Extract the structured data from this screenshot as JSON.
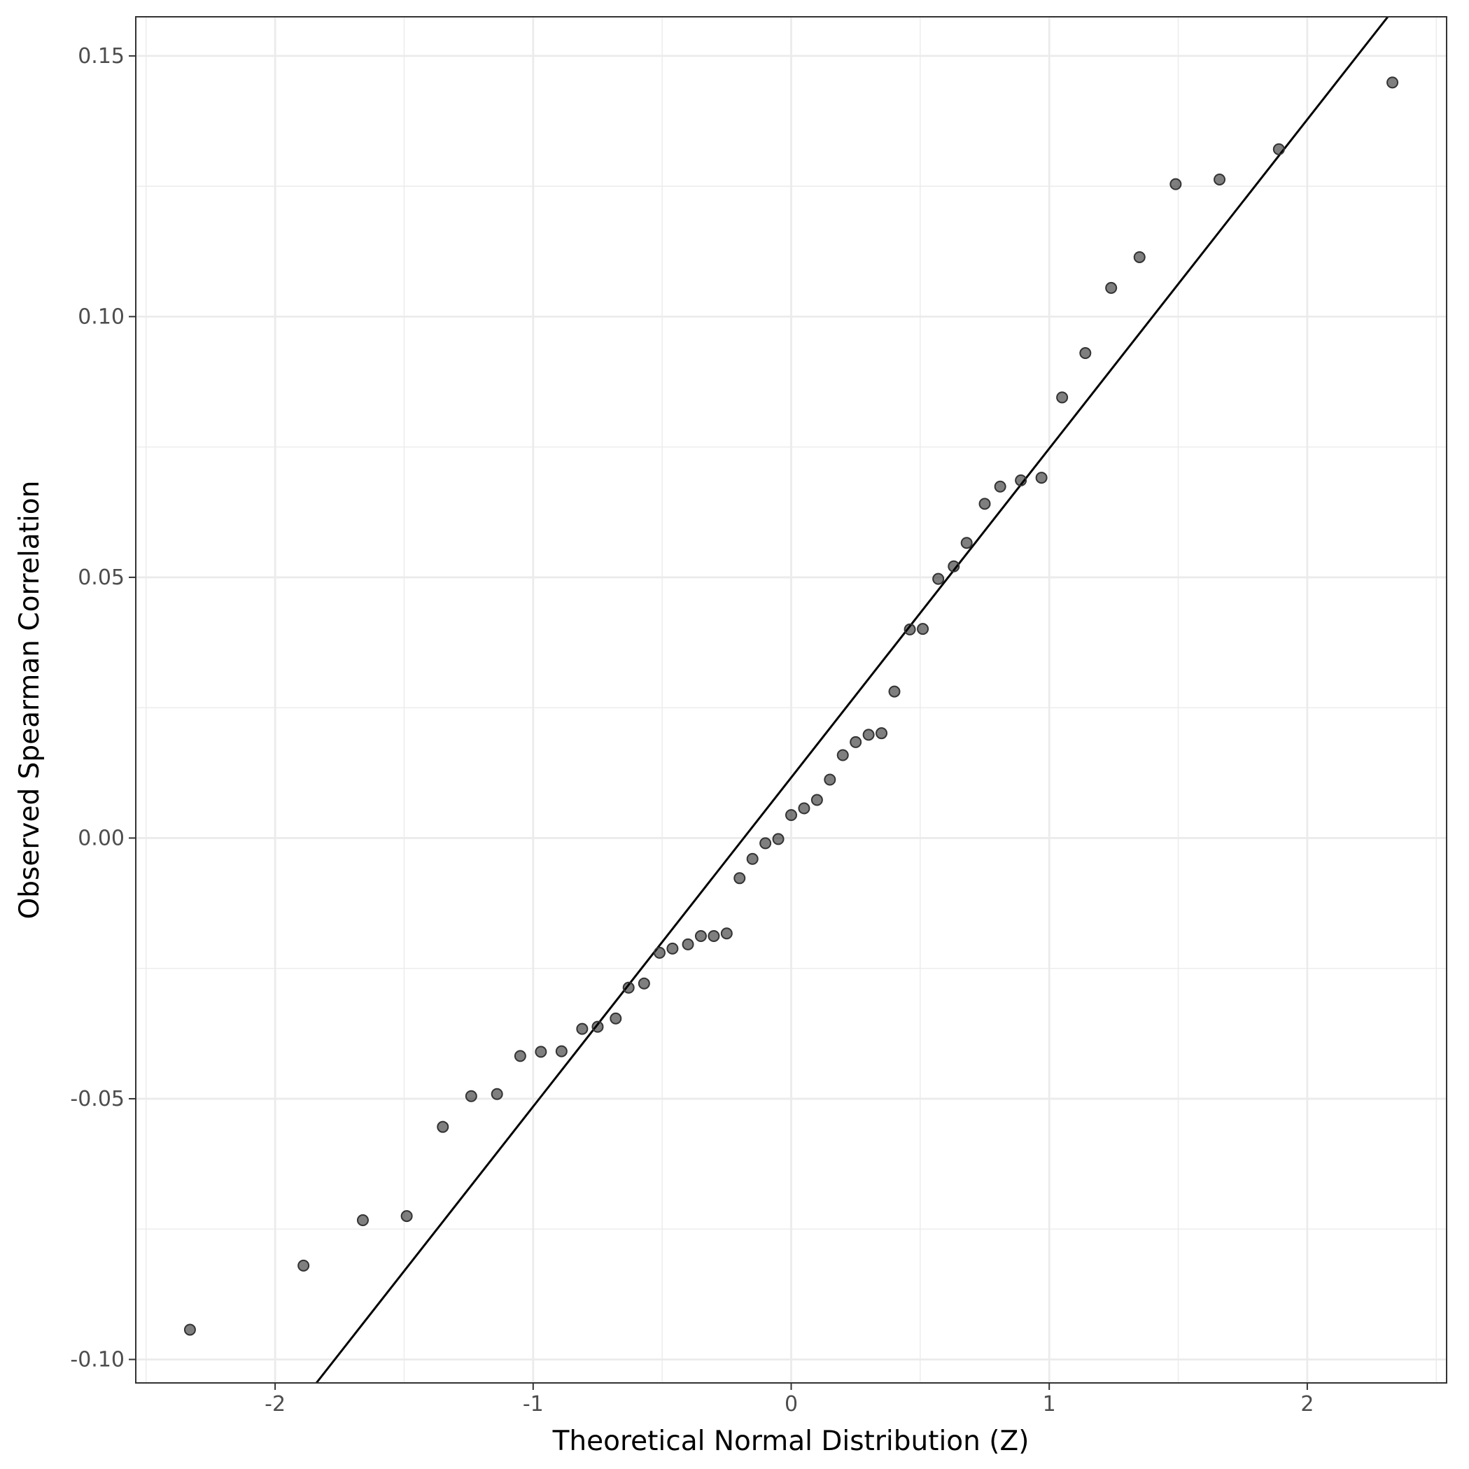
{
  "chart_data": {
    "type": "scatter",
    "title": "",
    "xlabel": "Theoretical Normal Distribution (Z)",
    "ylabel": "Observed Spearman Correlation",
    "xlim": [
      -2.54,
      2.54
    ],
    "ylim": [
      -0.1045,
      0.1575
    ],
    "x_ticks": [
      -2,
      -1,
      0,
      1,
      2
    ],
    "x_tick_labels": [
      "-2",
      "-1",
      "0",
      "1",
      "2"
    ],
    "y_ticks": [
      -0.1,
      -0.05,
      0.0,
      0.05,
      0.1,
      0.15
    ],
    "y_tick_labels": [
      "-0.10",
      "-0.05",
      "0.00",
      "0.05",
      "0.10",
      "0.15"
    ],
    "grid": true,
    "reference_line": {
      "intercept": 0.0116,
      "slope": 0.0631
    },
    "points": {
      "x": [
        -2.33,
        -1.89,
        -1.66,
        -1.49,
        -1.35,
        -1.24,
        -1.14,
        -1.05,
        -0.97,
        -0.89,
        -0.81,
        -0.75,
        -0.68,
        -0.63,
        -0.57,
        -0.51,
        -0.46,
        -0.4,
        -0.35,
        -0.3,
        -0.25,
        -0.2,
        -0.15,
        -0.1,
        -0.05,
        0.0,
        0.05,
        0.1,
        0.15,
        0.2,
        0.25,
        0.3,
        0.35,
        0.4,
        0.46,
        0.51,
        0.57,
        0.63,
        0.68,
        0.75,
        0.81,
        0.89,
        0.97,
        1.05,
        1.14,
        1.24,
        1.35,
        1.49,
        1.66,
        1.89,
        2.33
      ],
      "y": [
        -0.0943,
        -0.082,
        -0.0733,
        -0.0725,
        -0.0554,
        -0.0495,
        -0.0491,
        -0.0418,
        -0.041,
        -0.0409,
        -0.0366,
        -0.0362,
        -0.0346,
        -0.0287,
        -0.0279,
        -0.022,
        -0.0212,
        -0.0204,
        -0.0188,
        -0.0188,
        -0.0183,
        -0.0077,
        -0.004,
        -0.001,
        -0.0002,
        0.0044,
        0.0057,
        0.0073,
        0.0112,
        0.0159,
        0.0184,
        0.0198,
        0.0201,
        0.0281,
        0.04,
        0.0401,
        0.0497,
        0.0521,
        0.0566,
        0.0641,
        0.0674,
        0.0686,
        0.0691,
        0.0845,
        0.093,
        0.1055,
        0.1114,
        0.1254,
        0.1263,
        0.1321,
        0.1449
      ]
    }
  }
}
